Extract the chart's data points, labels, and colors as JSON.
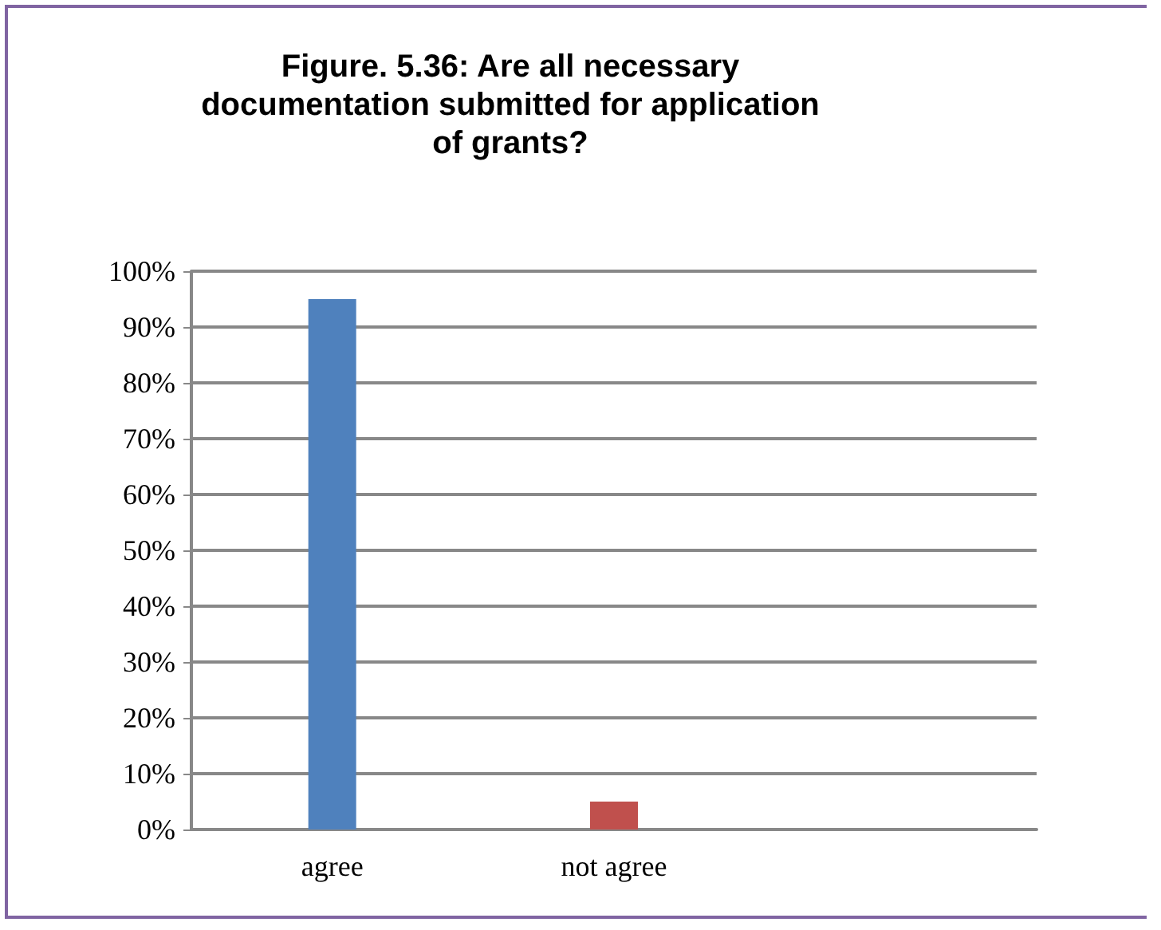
{
  "chart_data": {
    "type": "bar",
    "title": "Figure. 5.36: Are all necessary documentation submitted for application of grants?",
    "categories": [
      "agree",
      "not agree",
      null
    ],
    "values": [
      95,
      5,
      null
    ],
    "colors": [
      "#4f81bd",
      "#c0504d",
      null
    ],
    "ylim": [
      0,
      100
    ],
    "yticks": [
      {
        "value": 0,
        "label": "0%"
      },
      {
        "value": 10,
        "label": "10%"
      },
      {
        "value": 20,
        "label": "20%"
      },
      {
        "value": 30,
        "label": "30%"
      },
      {
        "value": 40,
        "label": "40%"
      },
      {
        "value": 50,
        "label": "50%"
      },
      {
        "value": 60,
        "label": "60%"
      },
      {
        "value": 70,
        "label": "70%"
      },
      {
        "value": 80,
        "label": "80%"
      },
      {
        "value": 90,
        "label": "90%"
      },
      {
        "value": 100,
        "label": "100%"
      }
    ],
    "grid": "y"
  }
}
